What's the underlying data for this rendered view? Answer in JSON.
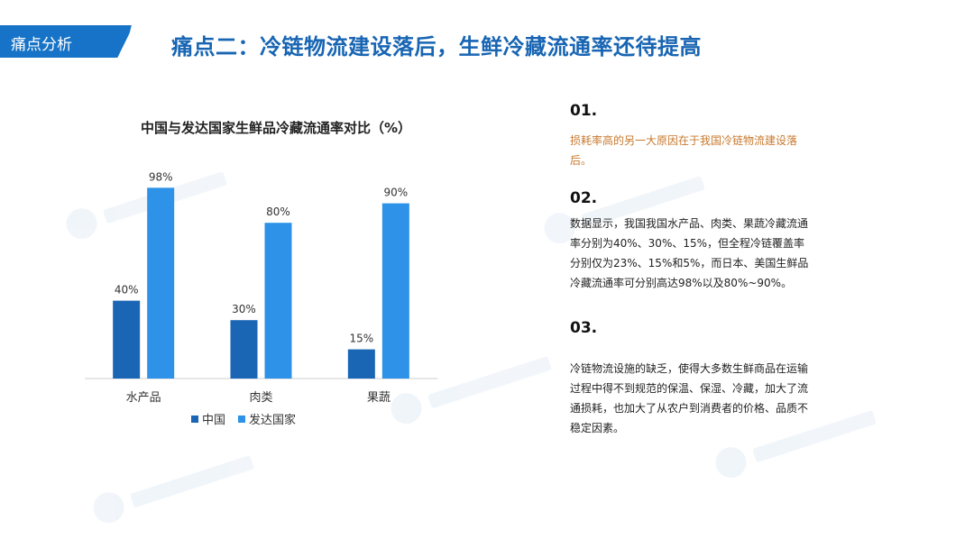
{
  "header": {
    "section_label": "痛点分析",
    "title": "痛点二：冷链物流建设落后，生鲜冷藏流通率还待提高"
  },
  "chart_data": {
    "type": "bar",
    "title": "中国与发达国家生鲜品冷藏流通率对比（%）",
    "categories": [
      "水产品",
      "肉类",
      "果蔬"
    ],
    "series": [
      {
        "name": "中国",
        "values": [
          40,
          30,
          15
        ],
        "labels": [
          "40%",
          "30%",
          "15%"
        ],
        "color": "#1a66b5"
      },
      {
        "name": "发达国家",
        "values": [
          98,
          80,
          90
        ],
        "labels": [
          "98%",
          "80%",
          "90%"
        ],
        "color": "#2d92e8"
      }
    ],
    "ylim": [
      0,
      100
    ],
    "grid": false,
    "legend": "bottom"
  },
  "points": [
    {
      "number": "01.",
      "text": "损耗率高的另一大原因在于我国冷链物流建设落后。"
    },
    {
      "number": "02.",
      "text": "数据显示，我国我国水产品、肉类、果蔬冷藏流通率分别为40%、30%、15%，但全程冷链覆盖率分别仅为23%、15%和5%，而日本、美国生鲜品冷藏流通率可分别高达98%以及80%~90%。"
    },
    {
      "number": "03.",
      "text": "冷链物流设施的缺乏，使得大多数生鲜商品在运输过程中得不到规范的保温、保湿、冷藏，加大了流通损耗，也加大了从农户到消费者的价格、品质不稳定因素。"
    }
  ],
  "colors": {
    "brand": "#1673c7",
    "title": "#1865b3",
    "highlight": "#c8792e"
  }
}
